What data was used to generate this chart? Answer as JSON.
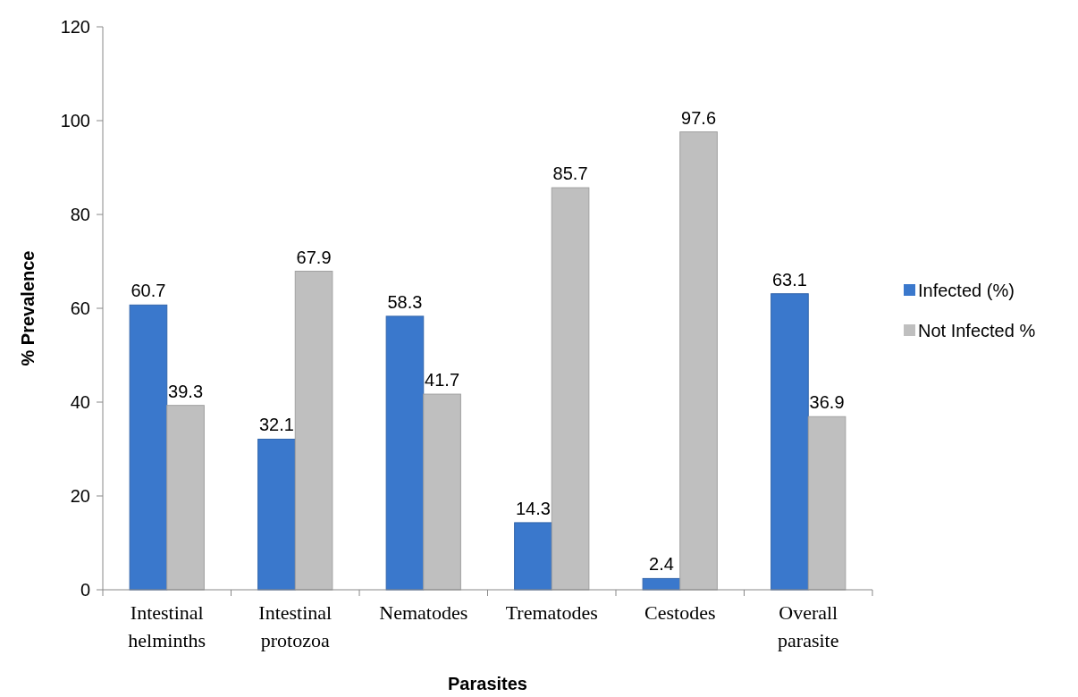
{
  "chart_data": {
    "type": "bar",
    "xlabel": "Parasites",
    "ylabel": "% Prevalence",
    "categories": [
      "Intestinal helminths",
      "Intestinal protozoa",
      "Nematodes",
      "Trematodes",
      "Cestodes",
      "Overall parasite"
    ],
    "series": [
      {
        "name": "Infected (%)",
        "color": "#3a78cc",
        "values": [
          60.7,
          32.1,
          58.3,
          14.3,
          2.4,
          63.1
        ]
      },
      {
        "name": "Not Infected %",
        "color": "#bfbfbf",
        "values": [
          39.3,
          67.9,
          41.7,
          85.7,
          97.6,
          36.9
        ]
      }
    ],
    "ylim": [
      0,
      120
    ],
    "yticks": [
      0,
      20,
      40,
      60,
      80,
      100,
      120
    ],
    "data_labels": true,
    "legend": "right",
    "grid": false
  }
}
